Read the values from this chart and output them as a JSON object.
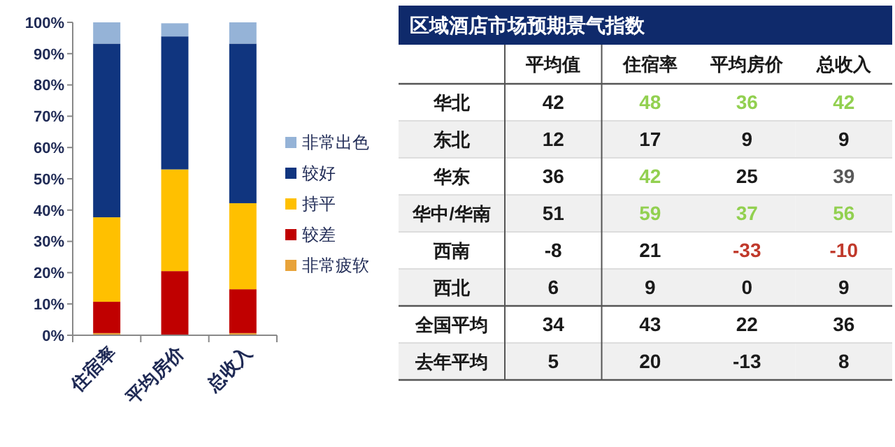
{
  "chart_data": [
    {
      "type": "bar",
      "stacked": true,
      "categories": [
        "住宿率",
        "平均房价",
        "总收入"
      ],
      "series": [
        {
          "name": "非常疲软",
          "color": "#e8a33a",
          "values": [
            0.7,
            null,
            0.7
          ]
        },
        {
          "name": "较差",
          "color": "#c00000",
          "values": [
            10,
            20.5,
            14
          ]
        },
        {
          "name": "持平",
          "color": "#ffc000",
          "values": [
            27,
            32.5,
            27.5
          ]
        },
        {
          "name": "较好",
          "color": "#10357f",
          "values": [
            55.5,
            42.5,
            51
          ]
        },
        {
          "name": "非常出色",
          "color": "#95b3d7",
          "values": [
            6.8,
            4.2,
            6.8
          ]
        }
      ],
      "ylim": [
        0,
        100
      ],
      "yticks": [
        {
          "value": 0,
          "label": "0%"
        },
        {
          "value": 10,
          "label": "10%"
        },
        {
          "value": 20,
          "label": "20%"
        },
        {
          "value": 30,
          "label": "30%"
        },
        {
          "value": 40,
          "label": "40%"
        },
        {
          "value": 50,
          "label": "50%"
        },
        {
          "value": 60,
          "label": "60%"
        },
        {
          "value": 70,
          "label": "70%"
        },
        {
          "value": 80,
          "label": "80%"
        },
        {
          "value": 90,
          "label": "90%"
        },
        {
          "value": 100,
          "label": "100%"
        }
      ],
      "grid": false,
      "legend": "right"
    },
    {
      "type": "other",
      "title": "区域酒店市场预期景气指数",
      "categories": [
        "平均值",
        "住宿率",
        "平均房价",
        "总收入"
      ],
      "y_categories": [
        "华北",
        "东北",
        "华东",
        "华中/华南",
        "西南",
        "西北",
        "全国平均",
        "去年平均"
      ],
      "cell_labels": [
        [
          "42",
          "48",
          "36",
          "42"
        ],
        [
          "12",
          "17",
          "9",
          "9"
        ],
        [
          "36",
          "42",
          "25",
          "39"
        ],
        [
          "51",
          "59",
          "37",
          "56"
        ],
        [
          "-8",
          "21",
          "-33",
          "-10"
        ],
        [
          "6",
          "9",
          "0",
          "9"
        ],
        [
          "34",
          "43",
          "22",
          "36"
        ],
        [
          "5",
          "20",
          "-13",
          "8"
        ]
      ],
      "colors": [
        [
          "#1a1a1a",
          "#92d050",
          "#92d050",
          "#92d050"
        ],
        [
          "#1a1a1a",
          "#1a1a1a",
          "#1a1a1a",
          "#1a1a1a"
        ],
        [
          "#1a1a1a",
          "#92d050",
          "#1a1a1a",
          "#595959"
        ],
        [
          "#1a1a1a",
          "#92d050",
          "#92d050",
          "#92d050"
        ],
        [
          "#1a1a1a",
          "#1a1a1a",
          "#c0392b",
          "#c0392b"
        ],
        [
          "#1a1a1a",
          "#1a1a1a",
          "#1a1a1a",
          "#1a1a1a"
        ],
        [
          "#1a1a1a",
          "#1a1a1a",
          "#1a1a1a",
          "#1a1a1a"
        ],
        [
          "#1a1a1a",
          "#1a1a1a",
          "#1a1a1a",
          "#1a1a1a"
        ]
      ]
    }
  ]
}
